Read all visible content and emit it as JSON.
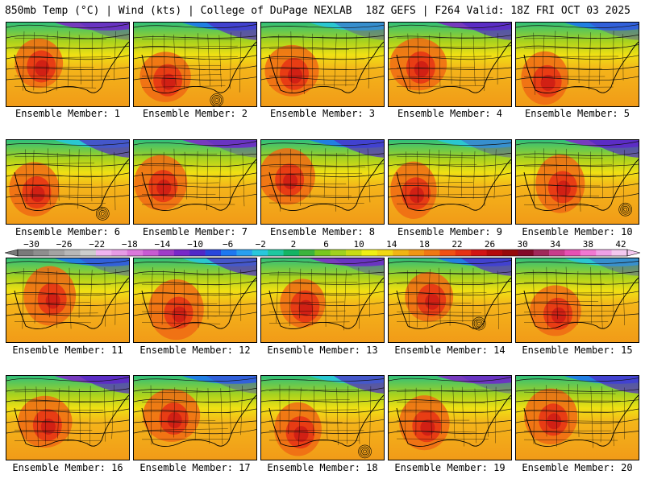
{
  "header": {
    "left": "850mb Temp (°C) | Wind (kts) | College of DuPage NEXLAB",
    "right": "18Z GEFS | F264 Valid: 18Z FRI OCT 03 2025"
  },
  "panels": [
    {
      "label": "Ensemble Member: 1"
    },
    {
      "label": "Ensemble Member: 2"
    },
    {
      "label": "Ensemble Member: 3"
    },
    {
      "label": "Ensemble Member: 4"
    },
    {
      "label": "Ensemble Member: 5"
    },
    {
      "label": "Ensemble Member: 6"
    },
    {
      "label": "Ensemble Member: 7"
    },
    {
      "label": "Ensemble Member: 8"
    },
    {
      "label": "Ensemble Member: 9"
    },
    {
      "label": "Ensemble Member: 10"
    },
    {
      "label": "Ensemble Member: 11"
    },
    {
      "label": "Ensemble Member: 12"
    },
    {
      "label": "Ensemble Member: 13"
    },
    {
      "label": "Ensemble Member: 14"
    },
    {
      "label": "Ensemble Member: 15"
    },
    {
      "label": "Ensemble Member: 16"
    },
    {
      "label": "Ensemble Member: 17"
    },
    {
      "label": "Ensemble Member: 18"
    },
    {
      "label": "Ensemble Member: 19"
    },
    {
      "label": "Ensemble Member: 20"
    }
  ],
  "colorbar": {
    "tick_labels": [
      "−30",
      "−26",
      "−22",
      "−18",
      "−14",
      "−10",
      "−6",
      "−2",
      "2",
      "6",
      "10",
      "14",
      "18",
      "22",
      "26",
      "30",
      "34",
      "38",
      "42"
    ],
    "colors": [
      "#7a7a7a",
      "#8e8e8e",
      "#a3a3a3",
      "#b8b8b8",
      "#cdcdcd",
      "#f0b4f0",
      "#e69be6",
      "#dc78dc",
      "#c85ad2",
      "#a03cc8",
      "#7828c8",
      "#5028c8",
      "#2846dc",
      "#1e78f0",
      "#28a0f0",
      "#28c8dc",
      "#1ec8a0",
      "#14b464",
      "#3cb43c",
      "#78c81e",
      "#a0d21e",
      "#c8dc14",
      "#f0f014",
      "#f0d814",
      "#f0b414",
      "#f09614",
      "#f07814",
      "#f05014",
      "#e63214",
      "#d21414",
      "#b40a0a",
      "#960a0a",
      "#820a28",
      "#a0285a",
      "#c83c8c",
      "#e650b4",
      "#f078d2",
      "#f0a0e6",
      "#f5c8f0"
    ]
  }
}
